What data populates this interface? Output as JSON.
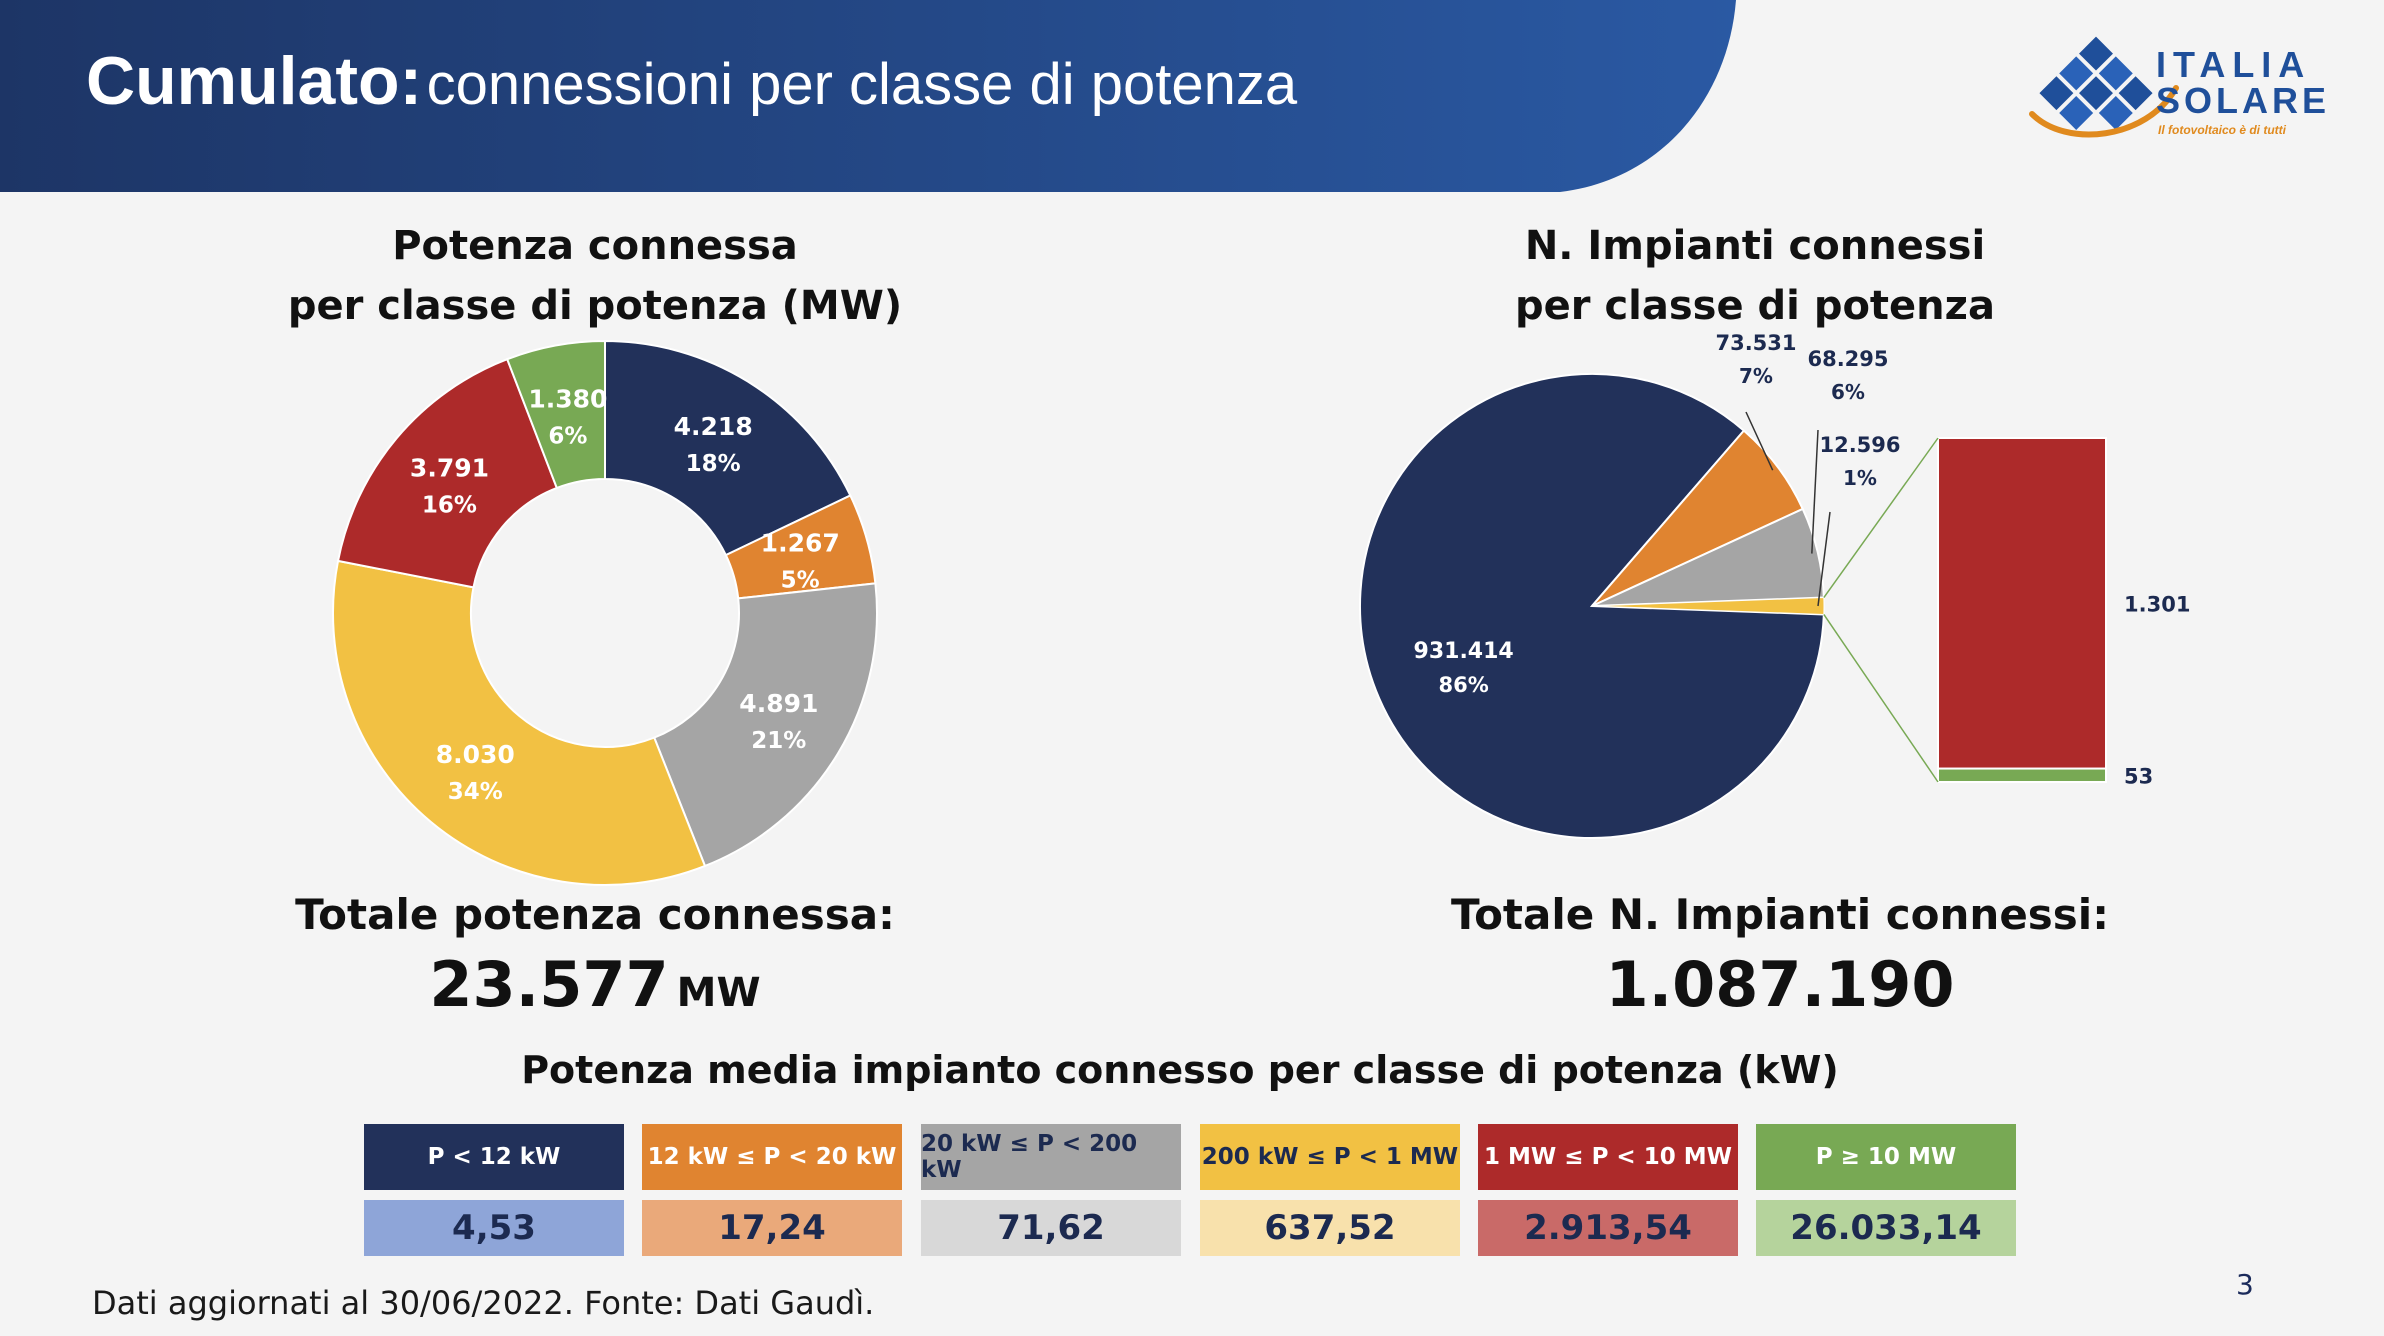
{
  "header": {
    "title_strong": "Cumulato:",
    "title_rest": "connessioni per classe di potenza"
  },
  "logo": {
    "line1": "ITALIA",
    "line2": "SOLARE",
    "tagline": "Il fotovoltaico è di tutti"
  },
  "colors": {
    "navy": "#22315a",
    "orange": "#e08430",
    "gray": "#a5a5a5",
    "yellow": "#f2c143",
    "red": "#ad2a2a",
    "green": "#78a954"
  },
  "chart_data": [
    {
      "type": "pie",
      "variant": "donut",
      "title": "Potenza connessa per classe di potenza (MW)",
      "title_lines": [
        "Potenza connessa",
        "per classe di potenza (MW)"
      ],
      "slices": [
        {
          "value": 4218,
          "value_label": "4.218",
          "pct_label": "18%",
          "color": "#22315a"
        },
        {
          "value": 1267,
          "value_label": "1.267",
          "pct_label": "5%",
          "color": "#e08430"
        },
        {
          "value": 4891,
          "value_label": "4.891",
          "pct_label": "21%",
          "color": "#a5a5a5"
        },
        {
          "value": 8030,
          "value_label": "8.030",
          "pct_label": "34%",
          "color": "#f2c143"
        },
        {
          "value": 3791,
          "value_label": "3.791",
          "pct_label": "16%",
          "color": "#ad2a2a"
        },
        {
          "value": 1380,
          "value_label": "1.380",
          "pct_label": "6%",
          "color": "#78a954"
        }
      ]
    },
    {
      "type": "pie",
      "variant": "bar-of-pie",
      "title": "N. Impianti connessi per classe di potenza",
      "title_lines": [
        "N. Impianti connessi",
        "per classe di potenza"
      ],
      "slices": [
        {
          "value": 931414,
          "value_label": "931.414",
          "pct_label": "86%",
          "color": "#22315a"
        },
        {
          "value": 73531,
          "value_label": "73.531",
          "pct_label": "7%",
          "color": "#e08430"
        },
        {
          "value": 68295,
          "value_label": "68.295",
          "pct_label": "6%",
          "color": "#a5a5a5"
        },
        {
          "value": 12596,
          "value_label": "12.596",
          "pct_label": "1%",
          "color": "#f2c143"
        }
      ],
      "breakout": [
        {
          "value": 1301,
          "value_label": "1.301",
          "color": "#ad2a2a"
        },
        {
          "value": 53,
          "value_label": "53",
          "color": "#78a954"
        }
      ]
    }
  ],
  "totals": {
    "power_label": "Totale potenza connessa:",
    "power_value": "23.577",
    "power_unit": "MW",
    "plants_label": "Totale N. Impianti connessi:",
    "plants_value": "1.087.190"
  },
  "table": {
    "title": "Potenza media impianto connesso per classe di potenza (kW)",
    "classes": [
      {
        "label": "P < 12 kW",
        "avg": "4,53",
        "bg": "#22315a",
        "fg": "#ffffff",
        "avg_bg": "#8ea5d8",
        "avg_fg": "#1c2a50"
      },
      {
        "label": "12 kW ≤ P < 20 kW",
        "avg": "17,24",
        "bg": "#e08430",
        "fg": "#ffffff",
        "avg_bg": "#eaa97a",
        "avg_fg": "#1c2a50"
      },
      {
        "label": "20 kW ≤ P < 200 kW",
        "avg": "71,62",
        "bg": "#a5a5a5",
        "fg": "#1c2a50",
        "avg_bg": "#d8d8d8",
        "avg_fg": "#1c2a50"
      },
      {
        "label": "200 kW ≤ P < 1 MW",
        "avg": "637,52",
        "bg": "#f2c143",
        "fg": "#1c2a50",
        "avg_bg": "#f8e1ac",
        "avg_fg": "#1c2a50"
      },
      {
        "label": "1 MW ≤ P  < 10 MW",
        "avg": "2.913,54",
        "bg": "#ad2a2a",
        "fg": "#ffffff",
        "avg_bg": "#c96a68",
        "avg_fg": "#1c2a50"
      },
      {
        "label": "P ≥ 10 MW",
        "avg": "26.033,14",
        "bg": "#78a954",
        "fg": "#ffffff",
        "avg_bg": "#b5d39c",
        "avg_fg": "#1c2a50"
      }
    ]
  },
  "footnote": "Dati aggiornati al 30/06/2022. Fonte: Dati Gaudì.",
  "page_number": "3"
}
